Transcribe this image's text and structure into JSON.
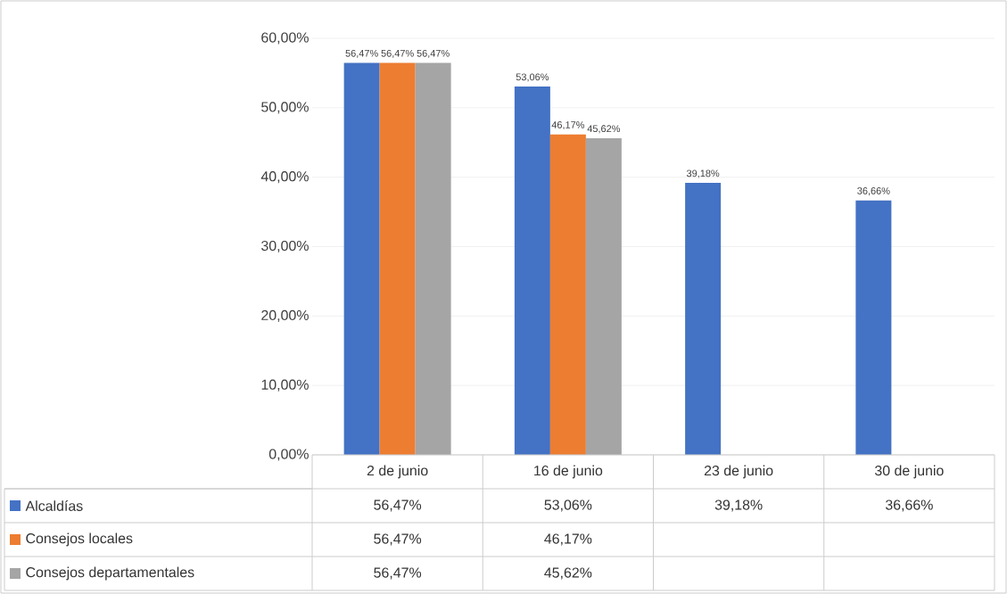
{
  "chart_data": {
    "type": "bar",
    "categories": [
      "2 de junio",
      "16 de junio",
      "23 de junio",
      "30 de junio"
    ],
    "series": [
      {
        "name": "Alcaldías",
        "color": "#4472c4",
        "values": [
          56.47,
          53.06,
          39.18,
          36.66
        ],
        "value_labels": [
          "56,47%",
          "53,06%",
          "39,18%",
          "36,66%"
        ]
      },
      {
        "name": "Consejos locales",
        "color": "#ed7d31",
        "values": [
          56.47,
          46.17,
          null,
          null
        ],
        "value_labels": [
          "56,47%",
          "46,17%",
          null,
          null
        ]
      },
      {
        "name": "Consejos departamentales",
        "color": "#a5a5a5",
        "values": [
          56.47,
          45.62,
          null,
          null
        ],
        "value_labels": [
          "56,47%",
          "45,62%",
          null,
          null
        ]
      }
    ],
    "ylim": [
      0,
      60
    ],
    "yticks": [
      {
        "value": 0,
        "label": "0,00%"
      },
      {
        "value": 10,
        "label": "10,00%"
      },
      {
        "value": 20,
        "label": "20,00%"
      },
      {
        "value": 30,
        "label": "30,00%"
      },
      {
        "value": 40,
        "label": "40,00%"
      },
      {
        "value": 50,
        "label": "50,00%"
      },
      {
        "value": 60,
        "label": "60,00%"
      }
    ],
    "grid": "y",
    "legend": "bottom"
  }
}
